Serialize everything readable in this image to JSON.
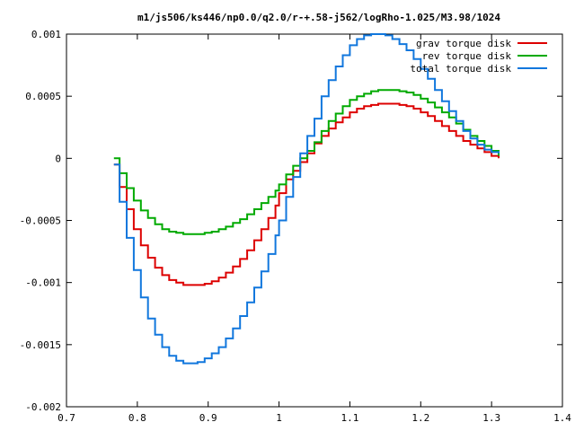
{
  "chart_data": {
    "type": "line",
    "style": "step",
    "title": "m1/js506/ks446/np0.0/q2.0/r-+.58-j562/logRho-1.025/M3.98/1024",
    "xlabel": "",
    "ylabel": "",
    "xlim": [
      0.7,
      1.4
    ],
    "ylim": [
      -0.002,
      0.001
    ],
    "xticks": [
      0.7,
      0.8,
      0.9,
      1.0,
      1.1,
      1.2,
      1.3,
      1.4
    ],
    "xtick_labels": [
      "0.7",
      "0.8",
      "0.9",
      "1",
      "1.1",
      "1.2",
      "1.3",
      "1.4"
    ],
    "yticks": [
      -0.002,
      -0.0015,
      -0.001,
      -0.0005,
      0,
      0.0005,
      0.001
    ],
    "ytick_labels": [
      "-0.002",
      "-0.0015",
      "-0.001",
      "-0.0005",
      "0",
      "0.0005",
      "0.001"
    ],
    "grid": false,
    "legend_position": "top-right",
    "series": [
      {
        "name": "grav torque disk",
        "color": "#dd0000",
        "x": [
          0.767,
          0.775,
          0.785,
          0.795,
          0.805,
          0.815,
          0.825,
          0.835,
          0.845,
          0.855,
          0.865,
          0.875,
          0.885,
          0.895,
          0.905,
          0.915,
          0.925,
          0.935,
          0.945,
          0.955,
          0.965,
          0.975,
          0.985,
          0.995,
          1.0,
          1.01,
          1.02,
          1.03,
          1.04,
          1.05,
          1.06,
          1.07,
          1.08,
          1.09,
          1.1,
          1.11,
          1.12,
          1.13,
          1.14,
          1.15,
          1.16,
          1.17,
          1.18,
          1.19,
          1.2,
          1.21,
          1.22,
          1.23,
          1.24,
          1.25,
          1.26,
          1.27,
          1.28,
          1.29,
          1.3,
          1.31
        ],
        "y": [
          -5e-05,
          -0.00023,
          -0.00041,
          -0.00057,
          -0.0007,
          -0.0008,
          -0.00088,
          -0.00094,
          -0.00098,
          -0.001,
          -0.00102,
          -0.00102,
          -0.00102,
          -0.00101,
          -0.00099,
          -0.00096,
          -0.00092,
          -0.00087,
          -0.00081,
          -0.00074,
          -0.00066,
          -0.00057,
          -0.00048,
          -0.00038,
          -0.00028,
          -0.00017,
          -0.0001,
          -3e-05,
          4e-05,
          0.00012,
          0.00018,
          0.00024,
          0.00029,
          0.00033,
          0.00037,
          0.0004,
          0.00042,
          0.00043,
          0.00044,
          0.00044,
          0.00044,
          0.00043,
          0.00042,
          0.0004,
          0.00037,
          0.00034,
          0.0003,
          0.00026,
          0.00022,
          0.00018,
          0.00014,
          0.00011,
          8e-05,
          5e-05,
          2e-05,
          0.0
        ]
      },
      {
        "name": "rev torque disk",
        "color": "#00aa00",
        "x": [
          0.767,
          0.775,
          0.785,
          0.795,
          0.805,
          0.815,
          0.825,
          0.835,
          0.845,
          0.855,
          0.865,
          0.875,
          0.885,
          0.895,
          0.905,
          0.915,
          0.925,
          0.935,
          0.945,
          0.955,
          0.965,
          0.975,
          0.985,
          0.995,
          1.0,
          1.01,
          1.02,
          1.03,
          1.04,
          1.05,
          1.06,
          1.07,
          1.08,
          1.09,
          1.1,
          1.11,
          1.12,
          1.13,
          1.14,
          1.15,
          1.16,
          1.17,
          1.18,
          1.19,
          1.2,
          1.21,
          1.22,
          1.23,
          1.24,
          1.25,
          1.26,
          1.27,
          1.28,
          1.29,
          1.3,
          1.31
        ],
        "y": [
          0.0,
          -0.00012,
          -0.00024,
          -0.00034,
          -0.00042,
          -0.00048,
          -0.00053,
          -0.00057,
          -0.00059,
          -0.0006,
          -0.00061,
          -0.00061,
          -0.00061,
          -0.0006,
          -0.00059,
          -0.00057,
          -0.00055,
          -0.00052,
          -0.00049,
          -0.00045,
          -0.00041,
          -0.00036,
          -0.00031,
          -0.00026,
          -0.00021,
          -0.00013,
          -6e-05,
          0.0,
          6e-05,
          0.00013,
          0.00022,
          0.0003,
          0.00036,
          0.00042,
          0.00047,
          0.0005,
          0.00052,
          0.00054,
          0.00055,
          0.00055,
          0.00055,
          0.00054,
          0.00053,
          0.00051,
          0.00048,
          0.00045,
          0.00041,
          0.00037,
          0.00033,
          0.00028,
          0.00023,
          0.00018,
          0.00014,
          0.0001,
          6e-05,
          2e-05
        ]
      },
      {
        "name": "total torque disk",
        "color": "#1177dd",
        "x": [
          0.767,
          0.775,
          0.785,
          0.795,
          0.805,
          0.815,
          0.825,
          0.835,
          0.845,
          0.855,
          0.865,
          0.875,
          0.885,
          0.895,
          0.905,
          0.915,
          0.925,
          0.935,
          0.945,
          0.955,
          0.965,
          0.975,
          0.985,
          0.995,
          1.0,
          1.01,
          1.02,
          1.03,
          1.04,
          1.05,
          1.06,
          1.07,
          1.08,
          1.09,
          1.1,
          1.11,
          1.12,
          1.13,
          1.14,
          1.15,
          1.16,
          1.17,
          1.18,
          1.19,
          1.2,
          1.21,
          1.22,
          1.23,
          1.24,
          1.25,
          1.26,
          1.27,
          1.28,
          1.29,
          1.3,
          1.31
        ],
        "y": [
          -5e-05,
          -0.00035,
          -0.00064,
          -0.0009,
          -0.00112,
          -0.00129,
          -0.00142,
          -0.00152,
          -0.00159,
          -0.00163,
          -0.00165,
          -0.00165,
          -0.00164,
          -0.00161,
          -0.00157,
          -0.00152,
          -0.00145,
          -0.00137,
          -0.00127,
          -0.00116,
          -0.00104,
          -0.00091,
          -0.00077,
          -0.00062,
          -0.0005,
          -0.00031,
          -0.00015,
          4e-05,
          0.00018,
          0.00032,
          0.0005,
          0.00063,
          0.00074,
          0.00083,
          0.00091,
          0.00096,
          0.00099,
          0.001,
          0.001,
          0.00099,
          0.00096,
          0.00092,
          0.00087,
          0.0008,
          0.00072,
          0.00064,
          0.00055,
          0.00046,
          0.00038,
          0.0003,
          0.00022,
          0.00016,
          0.00011,
          7e-05,
          5e-05,
          4e-05
        ]
      }
    ]
  }
}
